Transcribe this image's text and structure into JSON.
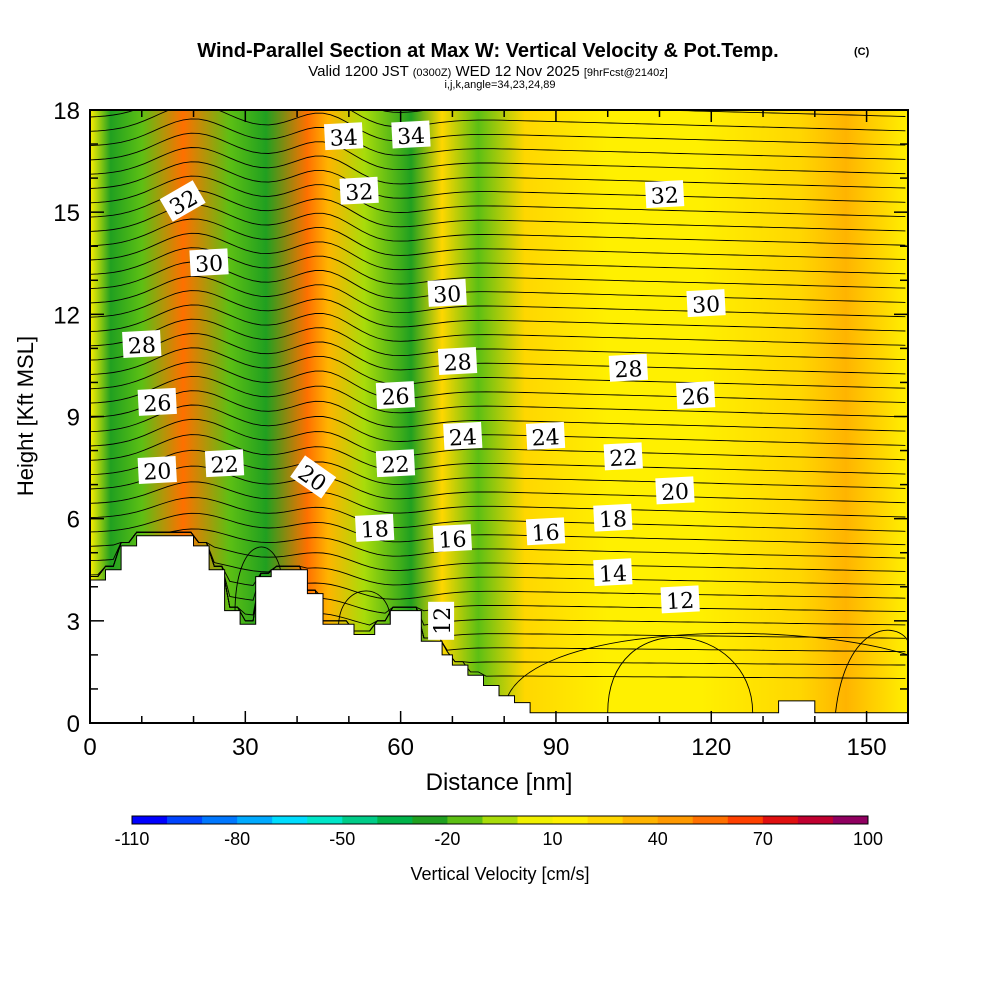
{
  "header": {
    "title": "Wind-Parallel Section at Max W: Vertical Velocity & Pot.Temp.",
    "copyright": "(C)",
    "valid_prefix": "Valid 1200 JST",
    "valid_utc": "(0300Z)",
    "valid_date": "WED 12 Nov 2025",
    "forecast": "[9hrFcst@2140z]",
    "indices": "i,j,k,angle=34,23,24,89"
  },
  "chart_data": {
    "type": "heatmap",
    "title": "Wind-Parallel Section at Max W: Vertical Velocity & Pot.Temp.",
    "xlabel": "Distance [nm]",
    "ylabel": "Height [Kft MSL]",
    "xlim": [
      0,
      158
    ],
    "ylim": [
      0,
      18
    ],
    "x_ticks": [
      "0",
      "30",
      "60",
      "90",
      "120",
      "150"
    ],
    "y_ticks": [
      "0",
      "3",
      "6",
      "9",
      "12",
      "15",
      "18"
    ],
    "colorbar": {
      "label": "Vertical Velocity [cm/s]",
      "tick_labels": [
        "-110",
        "-80",
        "-50",
        "-20",
        "10",
        "40",
        "70",
        "100"
      ],
      "range": [
        -110,
        100
      ],
      "step": 10,
      "colors": [
        "#0000ff",
        "#0044ff",
        "#0077ff",
        "#00aaff",
        "#00ddff",
        "#00e6c8",
        "#00cc88",
        "#00b34a",
        "#20a020",
        "#5cbf14",
        "#a8dc0a",
        "#f0f000",
        "#fff000",
        "#ffd700",
        "#ffb400",
        "#ff9900",
        "#ff7000",
        "#ff4000",
        "#e01010",
        "#c00030",
        "#900060",
        "#600090"
      ]
    },
    "vertical_velocity_bands": [
      {
        "x": 4,
        "w": -30
      },
      {
        "x": 10,
        "w": -20
      },
      {
        "x": 18,
        "w": 50
      },
      {
        "x": 27,
        "w": -20
      },
      {
        "x": 34,
        "w": -35
      },
      {
        "x": 42,
        "w": 45
      },
      {
        "x": 46,
        "w": 25
      },
      {
        "x": 53,
        "w": -15
      },
      {
        "x": 62,
        "w": -35
      },
      {
        "x": 68,
        "w": 20
      },
      {
        "x": 75,
        "w": -25
      },
      {
        "x": 84,
        "w": 15
      },
      {
        "x": 100,
        "w": 10
      },
      {
        "x": 118,
        "w": 12
      },
      {
        "x": 137,
        "w": 15
      },
      {
        "x": 146,
        "w": 30
      }
    ],
    "potential_temperature_contours": {
      "levels": [
        12,
        14,
        16,
        18,
        20,
        22,
        24,
        26,
        28,
        30,
        32,
        34
      ],
      "labels": [
        {
          "text": "34",
          "x": 49,
          "y": 17.2
        },
        {
          "text": "34",
          "x": 62,
          "y": 17.25
        },
        {
          "text": "32",
          "x": 18,
          "y": 15.3
        },
        {
          "text": "32",
          "x": 52,
          "y": 15.6
        },
        {
          "text": "32",
          "x": 111,
          "y": 15.5
        },
        {
          "text": "30",
          "x": 23,
          "y": 13.5
        },
        {
          "text": "30",
          "x": 69,
          "y": 12.6
        },
        {
          "text": "30",
          "x": 119,
          "y": 12.3
        },
        {
          "text": "28",
          "x": 10,
          "y": 11.1
        },
        {
          "text": "28",
          "x": 71,
          "y": 10.6
        },
        {
          "text": "28",
          "x": 104,
          "y": 10.4
        },
        {
          "text": "26",
          "x": 13,
          "y": 9.4
        },
        {
          "text": "26",
          "x": 59,
          "y": 9.6
        },
        {
          "text": "26",
          "x": 117,
          "y": 9.6
        },
        {
          "text": "24",
          "x": 72,
          "y": 8.4
        },
        {
          "text": "24",
          "x": 88,
          "y": 8.4
        },
        {
          "text": "22",
          "x": 26,
          "y": 7.6
        },
        {
          "text": "22",
          "x": 59,
          "y": 7.6
        },
        {
          "text": "22",
          "x": 103,
          "y": 7.8
        },
        {
          "text": "20",
          "x": 13,
          "y": 7.4
        },
        {
          "text": "20",
          "x": 43,
          "y": 7.2
        },
        {
          "text": "20",
          "x": 113,
          "y": 6.8
        },
        {
          "text": "18",
          "x": 55,
          "y": 5.7
        },
        {
          "text": "18",
          "x": 101,
          "y": 6.0
        },
        {
          "text": "16",
          "x": 70,
          "y": 5.4
        },
        {
          "text": "16",
          "x": 88,
          "y": 5.6
        },
        {
          "text": "14",
          "x": 101,
          "y": 4.4
        },
        {
          "text": "12",
          "x": 68,
          "y": 3.0
        },
        {
          "text": "12",
          "x": 114,
          "y": 3.6
        }
      ]
    },
    "terrain_profile": [
      [
        0,
        4.2
      ],
      [
        3,
        4.2
      ],
      [
        3,
        4.5
      ],
      [
        6,
        4.5
      ],
      [
        6,
        5.2
      ],
      [
        9,
        5.2
      ],
      [
        9,
        5.5
      ],
      [
        20,
        5.5
      ],
      [
        20,
        5.2
      ],
      [
        23,
        5.2
      ],
      [
        23,
        4.5
      ],
      [
        26,
        4.5
      ],
      [
        26,
        3.3
      ],
      [
        29,
        3.3
      ],
      [
        29,
        2.9
      ],
      [
        32,
        2.9
      ],
      [
        32,
        4.3
      ],
      [
        35,
        4.3
      ],
      [
        35,
        4.5
      ],
      [
        42,
        4.5
      ],
      [
        42,
        3.8
      ],
      [
        45,
        3.8
      ],
      [
        45,
        2.9
      ],
      [
        51,
        2.9
      ],
      [
        51,
        2.6
      ],
      [
        55,
        2.6
      ],
      [
        55,
        2.9
      ],
      [
        58,
        2.9
      ],
      [
        58,
        3.3
      ],
      [
        64,
        3.3
      ],
      [
        64,
        2.4
      ],
      [
        68,
        2.4
      ],
      [
        68,
        2.0
      ],
      [
        70,
        2.0
      ],
      [
        70,
        1.7
      ],
      [
        73,
        1.7
      ],
      [
        73,
        1.4
      ],
      [
        76,
        1.4
      ],
      [
        76,
        1.1
      ],
      [
        79,
        1.1
      ],
      [
        79,
        0.8
      ],
      [
        82,
        0.8
      ],
      [
        82,
        0.6
      ],
      [
        85,
        0.6
      ],
      [
        85,
        0.3
      ],
      [
        133,
        0.3
      ],
      [
        133,
        0.65
      ],
      [
        140,
        0.65
      ],
      [
        140,
        0.3
      ],
      [
        158,
        0.3
      ]
    ]
  }
}
